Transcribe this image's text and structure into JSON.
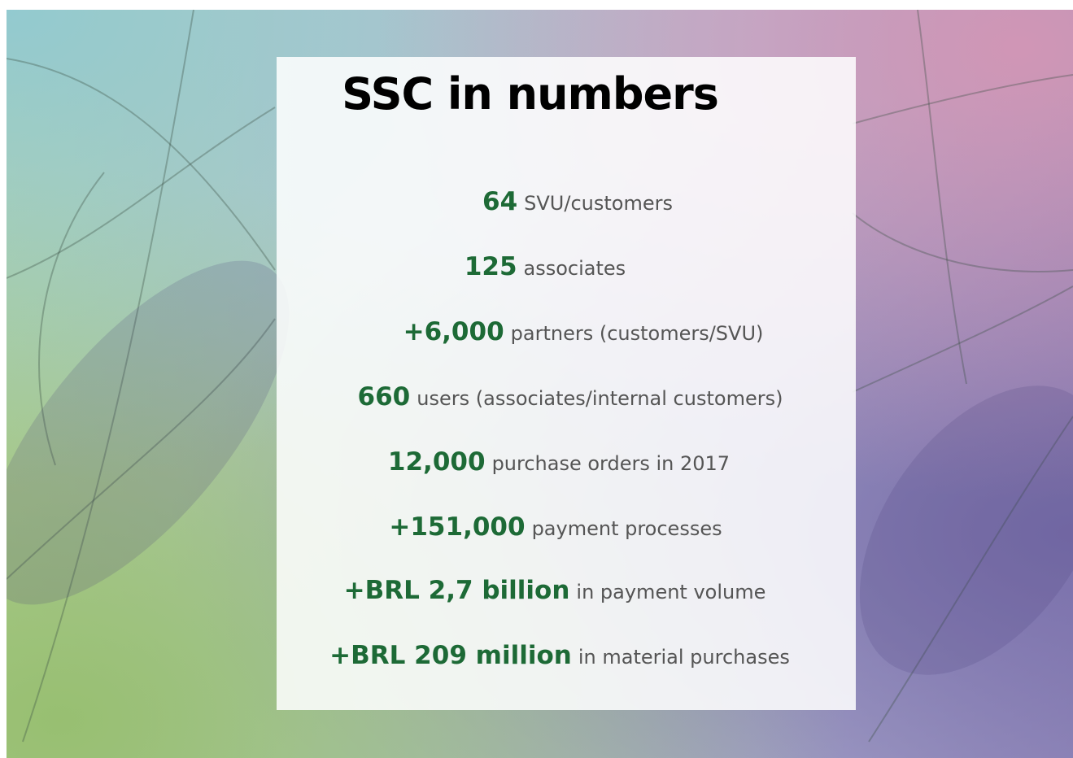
{
  "title": "SSC in numbers",
  "items": [
    {
      "number": "64",
      "text": "SVU/customers"
    },
    {
      "number": "125",
      "text": "associates"
    },
    {
      "number": "+6,000",
      "text": "partners (customers/SVU)"
    },
    {
      "number": "660",
      "text": "users (associates/internal customers)"
    },
    {
      "number": "12,000",
      "text": "purchase orders in 2017"
    },
    {
      "number": "+151,000",
      "text": "payment processes"
    },
    {
      "number": "+BRL 2,7 billion",
      "text": "in payment volume"
    },
    {
      "number": "+BRL 209 million",
      "text": "in material purchases"
    }
  ]
}
